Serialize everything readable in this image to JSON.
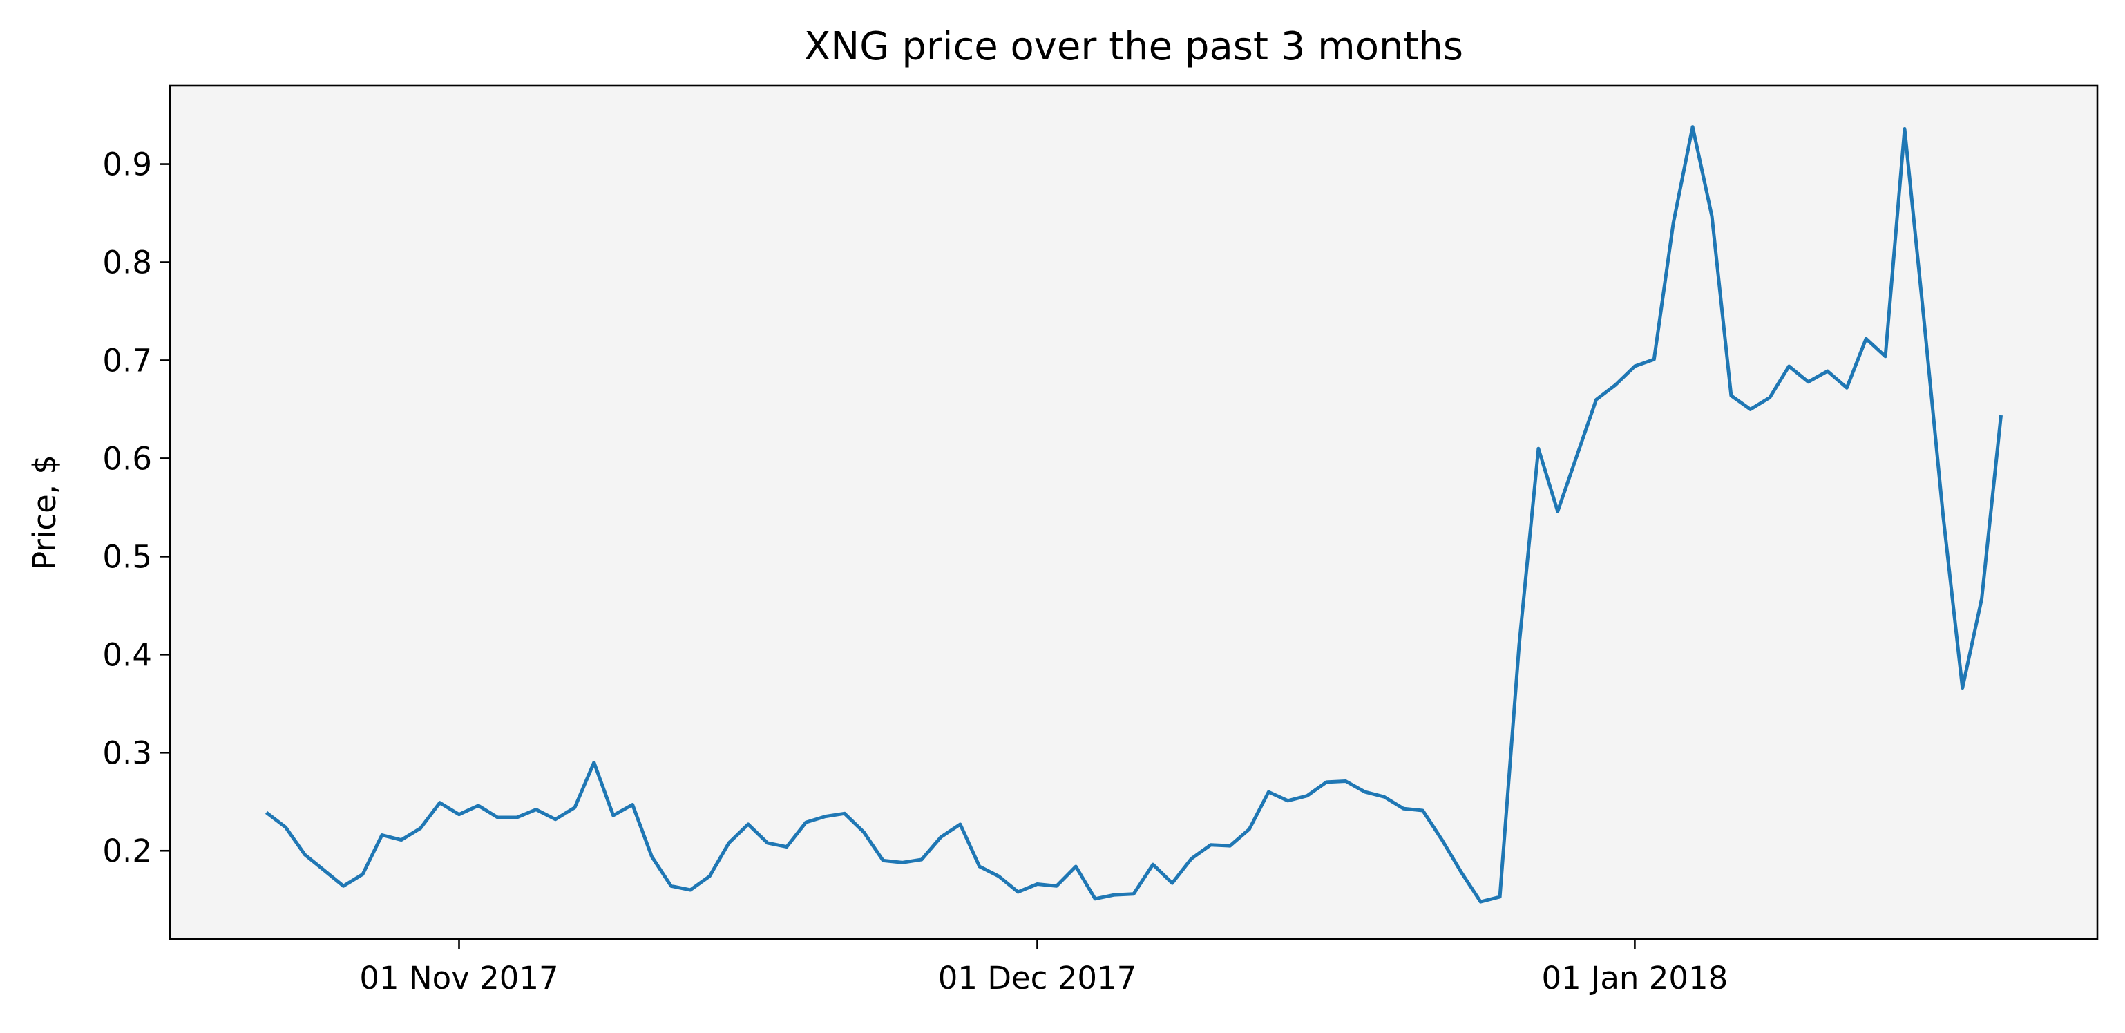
{
  "chart_data": {
    "type": "line",
    "title": "XNG price over the past 3 months",
    "xlabel": "",
    "ylabel": "Price, $",
    "x_ticks": [
      "2017-11-01",
      "2017-12-01",
      "2018-01-01"
    ],
    "x_tick_labels": [
      "01 Nov 2017",
      "01 Dec 2017",
      "01 Jan 2018"
    ],
    "y_ticks": [
      0.2,
      0.3,
      0.4,
      0.5,
      0.6,
      0.7,
      0.8,
      0.9
    ],
    "y_tick_labels": [
      "0.2",
      "0.3",
      "0.4",
      "0.5",
      "0.6",
      "0.7",
      "0.8",
      "0.9"
    ],
    "xlim": [
      "2017-10-17",
      "2018-01-25"
    ],
    "ylim": [
      0.11,
      0.98
    ],
    "grid": false,
    "colors": {
      "plot_background": "#f4f4f4",
      "line": "#1f77b4",
      "axes": "#000000"
    },
    "series": [
      {
        "x": [
          "2017-10-22",
          "2017-10-23",
          "2017-10-24",
          "2017-10-25",
          "2017-10-26",
          "2017-10-27",
          "2017-10-28",
          "2017-10-29",
          "2017-10-30",
          "2017-10-31",
          "2017-11-01",
          "2017-11-02",
          "2017-11-03",
          "2017-11-04",
          "2017-11-05",
          "2017-11-06",
          "2017-11-07",
          "2017-11-08",
          "2017-11-09",
          "2017-11-10",
          "2017-11-11",
          "2017-11-12",
          "2017-11-13",
          "2017-11-14",
          "2017-11-15",
          "2017-11-16",
          "2017-11-17",
          "2017-11-18",
          "2017-11-19",
          "2017-11-20",
          "2017-11-21",
          "2017-11-22",
          "2017-11-23",
          "2017-11-24",
          "2017-11-25",
          "2017-11-26",
          "2017-11-27",
          "2017-11-28",
          "2017-11-29",
          "2017-11-30",
          "2017-12-01",
          "2017-12-02",
          "2017-12-03",
          "2017-12-04",
          "2017-12-05",
          "2017-12-06",
          "2017-12-07",
          "2017-12-08",
          "2017-12-09",
          "2017-12-10",
          "2017-12-11",
          "2017-12-12",
          "2017-12-13",
          "2017-12-14",
          "2017-12-15",
          "2017-12-16",
          "2017-12-17",
          "2017-12-18",
          "2017-12-19",
          "2017-12-20",
          "2017-12-21",
          "2017-12-22",
          "2017-12-23",
          "2017-12-24",
          "2017-12-25",
          "2017-12-26",
          "2017-12-27",
          "2017-12-28",
          "2017-12-29",
          "2017-12-30",
          "2017-12-31",
          "2018-01-01",
          "2018-01-02",
          "2018-01-03",
          "2018-01-04",
          "2018-01-05",
          "2018-01-06",
          "2018-01-07",
          "2018-01-08",
          "2018-01-09",
          "2018-01-10",
          "2018-01-11",
          "2018-01-12",
          "2018-01-13",
          "2018-01-14",
          "2018-01-15",
          "2018-01-16",
          "2018-01-17",
          "2018-01-18",
          "2018-01-19",
          "2018-01-20"
        ],
        "y": [
          0.239,
          0.224,
          0.196,
          0.18,
          0.164,
          0.176,
          0.216,
          0.211,
          0.223,
          0.249,
          0.237,
          0.246,
          0.234,
          0.234,
          0.242,
          0.232,
          0.244,
          0.29,
          0.236,
          0.247,
          0.194,
          0.164,
          0.16,
          0.174,
          0.208,
          0.227,
          0.208,
          0.204,
          0.229,
          0.235,
          0.238,
          0.219,
          0.19,
          0.188,
          0.191,
          0.214,
          0.227,
          0.184,
          0.174,
          0.158,
          0.166,
          0.164,
          0.184,
          0.151,
          0.155,
          0.156,
          0.186,
          0.167,
          0.192,
          0.206,
          0.205,
          0.222,
          0.26,
          0.251,
          0.256,
          0.27,
          0.271,
          0.26,
          0.255,
          0.243,
          0.241,
          0.211,
          0.178,
          0.148,
          0.153,
          0.41,
          0.61,
          0.546,
          0.603,
          0.66,
          0.675,
          0.694,
          0.701,
          0.84,
          0.938,
          0.847,
          0.664,
          0.65,
          0.662,
          0.694,
          0.678,
          0.689,
          0.672,
          0.722,
          0.704,
          0.936,
          0.742,
          0.541,
          0.366,
          0.457,
          0.644
        ]
      }
    ]
  }
}
